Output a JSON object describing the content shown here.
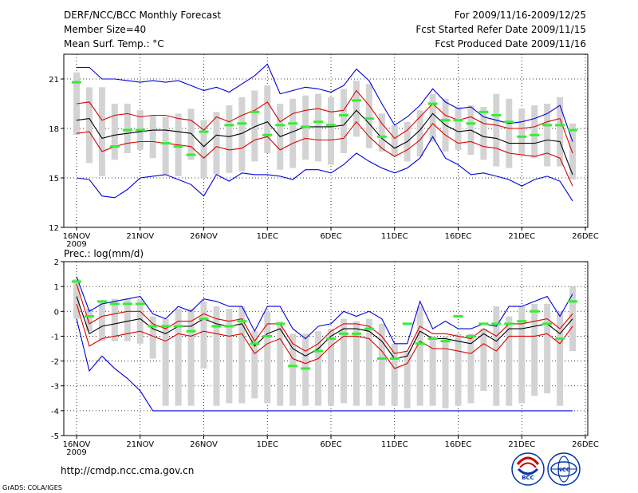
{
  "header": {
    "title": "DERF/NCC/BCC Monthly Forecast",
    "member_size": "Member Size=40",
    "variable": "Mean Surf. Temp.: °C",
    "period": "For 2009/11/16-2009/12/25",
    "started": "Fcst Started Refer Date 2009/11/15",
    "produced": "Fcst Produced Date 2009/11/16"
  },
  "footer": {
    "url": "http://cmdp.ncc.cma.gov.cn",
    "credit": "GrADS: COLA/IGES",
    "logo_left": "BCC",
    "logo_right": "NCC"
  },
  "colors": {
    "box": "#d3d3d3",
    "mean": "#000000",
    "spread": "#dd0000",
    "extreme": "#0000dd",
    "obs": "#33ee33",
    "grid": "#000000"
  },
  "chart_data": [
    {
      "type": "box",
      "title": "Mean Surf. Temp.: °C",
      "x_tick_labels": [
        "16NOV",
        "21NOV",
        "26NOV",
        "1DEC",
        "6DEC",
        "11DEC",
        "16DEC",
        "21DEC",
        "26DEC"
      ],
      "x_year_label": "2009",
      "y_ticks": [
        12,
        15,
        18,
        21
      ],
      "ylim": [
        12,
        22.5
      ],
      "days": 40,
      "max": [
        21.7,
        21.7,
        21.0,
        21.0,
        20.9,
        20.8,
        20.9,
        20.8,
        20.9,
        20.6,
        20.3,
        20.5,
        20.2,
        20.7,
        21.2,
        21.9,
        20.1,
        20.3,
        20.5,
        20.4,
        20.2,
        20.6,
        21.6,
        20.9,
        19.5,
        18.2,
        18.7,
        19.4,
        20.4,
        19.6,
        19.2,
        19.3,
        18.7,
        18.5,
        18.3,
        18.4,
        18.6,
        18.9,
        19.4,
        17.2
      ],
      "hi": [
        19.5,
        19.6,
        18.5,
        18.8,
        18.9,
        18.7,
        18.8,
        18.8,
        18.6,
        18.5,
        17.9,
        18.7,
        18.4,
        18.8,
        19.1,
        19.6,
        18.4,
        18.9,
        19.1,
        19.2,
        19.0,
        19.1,
        20.3,
        19.4,
        18.3,
        17.4,
        17.9,
        18.7,
        19.5,
        18.8,
        18.5,
        18.7,
        18.3,
        18.2,
        18.0,
        18.0,
        18.1,
        18.4,
        18.6,
        16.5
      ],
      "mean": [
        18.5,
        18.6,
        17.4,
        17.6,
        17.7,
        17.8,
        17.9,
        17.9,
        17.8,
        17.7,
        16.9,
        17.6,
        17.5,
        17.7,
        18.1,
        18.4,
        17.5,
        17.8,
        18.1,
        18.1,
        18.1,
        18.2,
        19.1,
        18.3,
        17.4,
        16.8,
        17.2,
        17.9,
        18.9,
        18.2,
        17.8,
        17.9,
        17.5,
        17.4,
        17.1,
        17.1,
        17.1,
        17.3,
        17.2,
        15.2
      ],
      "lo": [
        17.7,
        17.8,
        16.6,
        16.9,
        17.1,
        17.2,
        17.2,
        17.1,
        17.0,
        16.9,
        16.2,
        16.9,
        16.7,
        16.8,
        17.3,
        17.5,
        16.7,
        17.1,
        17.4,
        17.3,
        17.3,
        17.4,
        18.4,
        17.5,
        16.8,
        16.3,
        16.7,
        17.3,
        18.3,
        17.6,
        17.1,
        17.2,
        16.9,
        16.8,
        16.5,
        16.4,
        16.3,
        16.5,
        16.2,
        14.5
      ],
      "min": [
        15.0,
        14.9,
        13.9,
        13.8,
        14.3,
        15.0,
        15.1,
        15.2,
        14.9,
        14.6,
        13.9,
        15.2,
        14.8,
        15.3,
        15.2,
        15.2,
        15.1,
        14.9,
        15.5,
        15.5,
        15.3,
        15.8,
        16.5,
        16.0,
        15.6,
        15.3,
        15.6,
        16.2,
        17.5,
        16.2,
        15.8,
        15.2,
        15.3,
        15.1,
        14.9,
        14.5,
        14.9,
        15.1,
        14.8,
        13.6
      ],
      "box_top": [
        21.4,
        20.5,
        20.5,
        19.5,
        19.5,
        19.1,
        18.8,
        18.7,
        18.9,
        19.2,
        18.5,
        19.0,
        19.4,
        19.9,
        20.3,
        20.6,
        19.5,
        19.8,
        20.0,
        20.1,
        19.9,
        20.4,
        20.9,
        20.7,
        18.9,
        18.2,
        18.4,
        19.1,
        20.1,
        19.8,
        19.3,
        19.4,
        19.3,
        20.1,
        19.8,
        19.2,
        19.4,
        19.5,
        19.9,
        18.3
      ],
      "box_bottom": [
        17.6,
        15.9,
        15.1,
        16.1,
        16.5,
        16.7,
        16.2,
        15.2,
        15.1,
        16.1,
        15.0,
        15.2,
        15.3,
        15.4,
        16.0,
        16.5,
        15.5,
        15.6,
        16.1,
        16.0,
        15.8,
        16.5,
        17.5,
        16.8,
        16.6,
        16.3,
        16.0,
        16.3,
        17.2,
        16.6,
        16.7,
        16.4,
        16.1,
        15.7,
        15.6,
        16.4,
        16.2,
        15.7,
        15.7,
        14.9
      ],
      "obs": [
        20.8,
        null,
        null,
        16.9,
        17.9,
        17.9,
        null,
        17.1,
        16.9,
        16.4,
        17.8,
        null,
        18.2,
        18.3,
        19.0,
        17.6,
        18.2,
        18.3,
        18.1,
        18.4,
        18.2,
        18.8,
        19.7,
        18.6,
        17.5,
        null,
        null,
        null,
        19.5,
        18.5,
        18.5,
        18.3,
        19.0,
        18.8,
        18.4,
        17.5,
        17.6,
        18.2,
        18.2,
        17.9
      ]
    },
    {
      "type": "box",
      "title": "Prec.: log(mm/d)",
      "x_tick_labels": [
        "16NOV",
        "21NOV",
        "26NOV",
        "1DEC",
        "6DEC",
        "11DEC",
        "16DEC",
        "21DEC",
        "26DEC"
      ],
      "x_year_label": "2009",
      "y_ticks": [
        -5,
        -4,
        -3,
        -2,
        -1,
        0,
        1,
        2
      ],
      "ylim": [
        -5,
        2
      ],
      "days": 40,
      "max": [
        1.4,
        0.0,
        0.3,
        0.4,
        0.5,
        0.6,
        -0.1,
        -0.3,
        0.2,
        0.0,
        0.5,
        0.4,
        0.2,
        0.2,
        -0.8,
        0.2,
        0.2,
        -0.7,
        -1.1,
        -0.6,
        -0.5,
        0.0,
        -0.2,
        0.0,
        -0.3,
        -1.3,
        -1.3,
        0.4,
        -0.7,
        -0.4,
        -0.7,
        -0.7,
        -0.5,
        -0.6,
        0.2,
        0.2,
        0.4,
        0.6,
        -0.2,
        0.7
      ],
      "hi": [
        1.1,
        -0.5,
        -0.2,
        -0.1,
        0.0,
        0.0,
        -0.5,
        -0.7,
        -0.4,
        -0.4,
        -0.1,
        -0.3,
        -0.4,
        -0.3,
        -1.2,
        -0.5,
        -0.5,
        -1.3,
        -1.6,
        -1.3,
        -0.8,
        -0.5,
        -0.5,
        -0.6,
        -1.0,
        -1.7,
        -1.6,
        -0.6,
        -0.9,
        -0.9,
        -1.0,
        -1.1,
        -0.7,
        -1.0,
        -0.5,
        -0.5,
        -0.4,
        -0.3,
        -0.7,
        -0.1
      ],
      "mean": [
        0.6,
        -0.9,
        -0.6,
        -0.5,
        -0.4,
        -0.3,
        -0.7,
        -0.9,
        -0.6,
        -0.6,
        -0.3,
        -0.5,
        -0.6,
        -0.5,
        -1.4,
        -0.9,
        -0.7,
        -1.5,
        -1.8,
        -1.5,
        -1.0,
        -0.7,
        -0.7,
        -0.8,
        -1.2,
        -1.9,
        -1.8,
        -0.8,
        -1.1,
        -1.1,
        -1.2,
        -1.3,
        -0.9,
        -1.2,
        -0.7,
        -0.7,
        -0.6,
        -0.5,
        -0.9,
        -0.3
      ],
      "lo": [
        0.3,
        -1.4,
        -1.1,
        -1.0,
        -0.9,
        -0.8,
        -1.0,
        -1.2,
        -0.9,
        -1.0,
        -0.8,
        -0.9,
        -1.0,
        -0.9,
        -1.7,
        -1.3,
        -1.1,
        -1.9,
        -2.1,
        -1.9,
        -1.4,
        -1.0,
        -1.0,
        -1.1,
        -1.6,
        -2.3,
        -2.1,
        -1.2,
        -1.5,
        -1.5,
        -1.6,
        -1.7,
        -1.3,
        -1.6,
        -1.0,
        -1.0,
        -1.0,
        -0.9,
        -1.3,
        -0.6
      ],
      "min": [
        -0.3,
        -2.4,
        -1.8,
        -2.3,
        -2.7,
        -3.2,
        -4.0,
        -4.0,
        -4.0,
        -4.0,
        -4.0,
        -4.0,
        -4.0,
        -4.0,
        -4.0,
        -4.0,
        -4.0,
        -4.0,
        -4.0,
        -4.0,
        -4.0,
        -4.0,
        -4.0,
        -4.0,
        -4.0,
        -4.0,
        -4.0,
        -4.0,
        -4.0,
        -4.0,
        -4.0,
        -4.0,
        -4.0,
        -4.0,
        -4.0,
        -4.0,
        -4.0,
        -4.0,
        -4.0,
        -4.0
      ],
      "box_top": [
        1.3,
        0.1,
        0.4,
        0.5,
        0.5,
        0.5,
        -0.2,
        -0.3,
        0.1,
        0.1,
        0.4,
        0.2,
        0.1,
        0.2,
        -0.8,
        0.0,
        -0.4,
        -0.9,
        -0.9,
        -0.8,
        -0.7,
        -0.3,
        -0.4,
        -0.3,
        -0.5,
        -1.3,
        -1.6,
        0.2,
        -1.0,
        -1.0,
        -0.9,
        -0.9,
        -0.7,
        0.2,
        -0.2,
        0.2,
        0.3,
        0.3,
        0.0,
        1.0
      ],
      "box_bottom": [
        -0.3,
        -0.8,
        -1.2,
        -1.2,
        -1.2,
        -1.3,
        -1.9,
        -3.8,
        -3.8,
        -3.8,
        -2.3,
        -3.8,
        -3.7,
        -3.7,
        -3.5,
        -3.7,
        -3.8,
        -3.8,
        -3.8,
        -3.8,
        -3.8,
        -3.7,
        -3.8,
        -3.8,
        -3.8,
        -3.8,
        -3.9,
        -3.8,
        -3.8,
        -3.9,
        -3.8,
        -3.7,
        -3.2,
        -3.8,
        -3.8,
        -3.7,
        -3.4,
        -3.3,
        -3.8,
        -1.6
      ],
      "obs": [
        1.2,
        -0.2,
        0.4,
        0.3,
        0.3,
        0.3,
        -0.6,
        -0.6,
        -0.6,
        -0.8,
        -0.3,
        -0.6,
        -0.6,
        -0.4,
        -1.3,
        -1.0,
        -0.5,
        -2.2,
        -2.3,
        -1.6,
        -1.1,
        -0.9,
        -0.9,
        -0.7,
        -1.9,
        -1.9,
        -0.5,
        -1.3,
        -1.1,
        -1.2,
        -0.2,
        -1.0,
        -0.5,
        -0.5,
        -0.5,
        -0.4,
        0.0,
        -0.5,
        -1.1,
        0.4
      ]
    }
  ]
}
